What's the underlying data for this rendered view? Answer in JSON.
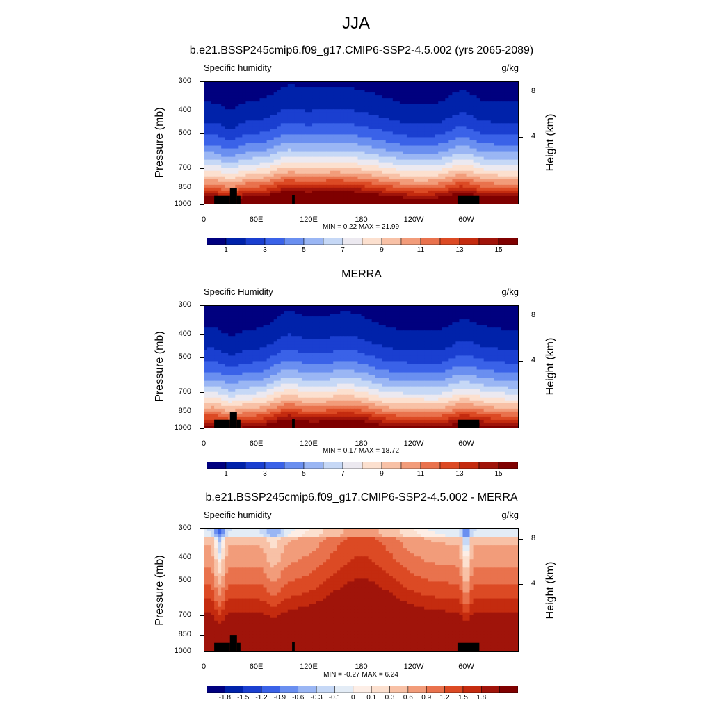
{
  "title": "JJA",
  "colors": {
    "full": [
      "#00007f",
      "#0022aa",
      "#1a3fd0",
      "#3a62e8",
      "#6a8ff0",
      "#9ab6f4",
      "#c6d8f6",
      "#ece9f0",
      "#fce0cf",
      "#f8c1a6",
      "#f29c7a",
      "#e9724d",
      "#dc4a24",
      "#c42b0f",
      "#a0140a",
      "#7f0000"
    ],
    "diff": [
      "#00007f",
      "#0022aa",
      "#1a3fd0",
      "#3a62e8",
      "#6a8ff0",
      "#9ab6f4",
      "#c6d8f6",
      "#e3ecf6",
      "#fdeee6",
      "#fce0cf",
      "#f8c1a6",
      "#f29c7a",
      "#e9724d",
      "#dc4a24",
      "#c42b0f",
      "#a0140a",
      "#7f0000"
    ]
  },
  "panels": [
    {
      "title": "b.e21.BSSP245cmip6.f09_g17.CMIP6-SSP2-4.5.002 (yrs 2065-2089)",
      "subtitle": "Specific humidity",
      "units": "g/kg",
      "ylabel": "Pressure (mb)",
      "ylabel_right": "Height (km)",
      "minmax": "MIN =   0.22  MAX =  21.99",
      "colorbar_labels": [
        "1",
        "3",
        "5",
        "7",
        "9",
        "11",
        "13",
        "15"
      ]
    },
    {
      "title": "MERRA",
      "subtitle": "Specific Humidity",
      "units": "g/kg",
      "ylabel": "Pressure (mb)",
      "ylabel_right": "Height (km)",
      "minmax": "MIN =   0.17  MAX =  18.72",
      "colorbar_labels": [
        "1",
        "3",
        "5",
        "7",
        "9",
        "11",
        "13",
        "15"
      ]
    },
    {
      "title": "b.e21.BSSP245cmip6.f09_g17.CMIP6-SSP2-4.5.002 - MERRA",
      "subtitle": "Specific humidity",
      "units": "g/kg",
      "ylabel": "Pressure (mb)",
      "ylabel_right": "Height (km)",
      "minmax": "MIN =  -0.27  MAX =   6.24",
      "colorbar_labels": [
        "-1.8",
        "-1.5",
        "-1.2",
        "-0.9",
        "-0.6",
        "-0.3",
        "-0.1",
        "0",
        "0.1",
        "0.3",
        "0.6",
        "0.9",
        "1.2",
        "1.5",
        "1.8"
      ]
    }
  ],
  "chart_data": [
    {
      "type": "heatmap",
      "title": "b.e21.BSSP245cmip6.f09_g17.CMIP6-SSP2-4.5.002 (yrs 2065-2089)",
      "xlabel": "",
      "ylabel": "Pressure (mb)",
      "x_ticks": [
        "0",
        "60E",
        "120E",
        "180",
        "120W",
        "60W"
      ],
      "x_tick_values": [
        0,
        60,
        120,
        180,
        240,
        300
      ],
      "xlim": [
        0,
        360
      ],
      "y_ticks": [
        300,
        400,
        500,
        700,
        850,
        1000
      ],
      "ylim": [
        1000,
        300
      ],
      "y_scale": "log",
      "y2_ticks": [
        4,
        8
      ],
      "contour_levels": [
        1,
        2,
        3,
        4,
        5,
        6,
        7,
        8,
        9,
        10,
        11,
        12,
        13,
        14,
        15
      ],
      "min": 0.22,
      "max": 21.99
    },
    {
      "type": "heatmap",
      "title": "MERRA",
      "ylabel": "Pressure (mb)",
      "x_ticks": [
        "0",
        "60E",
        "120E",
        "180",
        "120W",
        "60W"
      ],
      "x_tick_values": [
        0,
        60,
        120,
        180,
        240,
        300
      ],
      "xlim": [
        0,
        360
      ],
      "y_ticks": [
        300,
        400,
        500,
        700,
        850,
        1000
      ],
      "ylim": [
        1000,
        300
      ],
      "y_scale": "log",
      "y2_ticks": [
        4,
        8
      ],
      "contour_levels": [
        1,
        2,
        3,
        4,
        5,
        6,
        7,
        8,
        9,
        10,
        11,
        12,
        13,
        14,
        15
      ],
      "min": 0.17,
      "max": 18.72
    },
    {
      "type": "heatmap",
      "title": "b.e21.BSSP245cmip6.f09_g17.CMIP6-SSP2-4.5.002 - MERRA",
      "ylabel": "Pressure (mb)",
      "x_ticks": [
        "0",
        "60E",
        "120E",
        "180",
        "120W",
        "60W"
      ],
      "x_tick_values": [
        0,
        60,
        120,
        180,
        240,
        300
      ],
      "xlim": [
        0,
        360
      ],
      "y_ticks": [
        300,
        400,
        500,
        700,
        850,
        1000
      ],
      "ylim": [
        1000,
        300
      ],
      "y_scale": "log",
      "y2_ticks": [
        4,
        8
      ],
      "contour_levels": [
        -1.8,
        -1.5,
        -1.2,
        -0.9,
        -0.6,
        -0.3,
        -0.1,
        0,
        0.1,
        0.3,
        0.6,
        0.9,
        1.2,
        1.5,
        1.8
      ],
      "min": -0.27,
      "max": 6.24
    }
  ]
}
